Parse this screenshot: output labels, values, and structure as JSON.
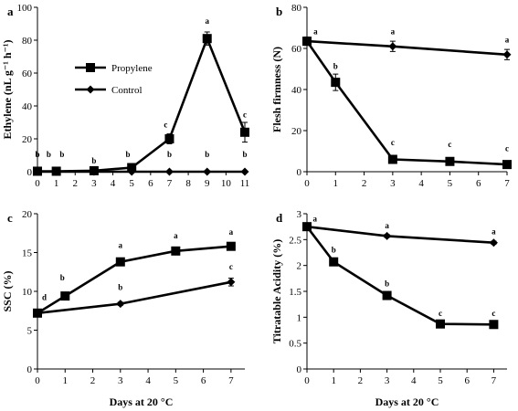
{
  "chart_data": [
    {
      "type": "line",
      "panel_label": "a",
      "ylabel": "Ethylene (nL g⁻¹ h⁻¹)",
      "xlabel": "",
      "xlim": [
        0,
        11
      ],
      "ylim": [
        0,
        100
      ],
      "x_ticks": [
        0,
        1,
        2,
        3,
        4,
        5,
        6,
        7,
        8,
        9,
        10,
        11
      ],
      "y_ticks": [
        0,
        20,
        40,
        60,
        80,
        100
      ],
      "legend": {
        "position": "left",
        "entries": [
          "Propylene",
          "Control"
        ]
      },
      "series": [
        {
          "name": "Propylene",
          "marker": "square",
          "x": [
            0,
            1,
            3,
            5,
            7,
            9,
            11
          ],
          "y": [
            0.3,
            0.3,
            0.6,
            2.5,
            20,
            81,
            24
          ],
          "err": [
            0,
            0,
            0,
            0.8,
            3,
            4,
            6
          ]
        },
        {
          "name": "Control",
          "marker": "diamond",
          "x": [
            0,
            1,
            3,
            5,
            7,
            9,
            11
          ],
          "y": [
            0,
            0,
            0,
            0,
            0,
            0,
            0
          ],
          "err": [
            0,
            0,
            0,
            0,
            0,
            0,
            0
          ]
        }
      ],
      "annotations": [
        {
          "x": 0,
          "y": 9,
          "text": "b"
        },
        {
          "x": 0.6,
          "y": 9,
          "text": "b"
        },
        {
          "x": 1.3,
          "y": 9,
          "text": "b"
        },
        {
          "x": 3,
          "y": 5,
          "text": "b"
        },
        {
          "x": 4.8,
          "y": 9,
          "text": "b"
        },
        {
          "x": 6.8,
          "y": 27,
          "text": "c"
        },
        {
          "x": 9,
          "y": 90,
          "text": "a"
        },
        {
          "x": 11,
          "y": 33,
          "text": "c"
        },
        {
          "x": 7,
          "y": 9,
          "text": "b"
        },
        {
          "x": 9,
          "y": 9,
          "text": "b"
        },
        {
          "x": 11,
          "y": 9,
          "text": "b"
        }
      ]
    },
    {
      "type": "line",
      "panel_label": "b",
      "ylabel": "Flesh firmness (N)",
      "xlabel": "",
      "xlim": [
        0,
        7
      ],
      "ylim": [
        0,
        80
      ],
      "x_ticks": [
        0,
        1,
        2,
        3,
        4,
        5,
        6,
        7
      ],
      "y_ticks": [
        0,
        20,
        40,
        60,
        80
      ],
      "series": [
        {
          "name": "Propylene",
          "marker": "square",
          "x": [
            0,
            1,
            3,
            5,
            7
          ],
          "y": [
            63.5,
            43.5,
            6,
            5,
            3.5
          ],
          "err": [
            2,
            4,
            1,
            1,
            1
          ]
        },
        {
          "name": "Control",
          "marker": "diamond",
          "x": [
            0,
            3,
            7
          ],
          "y": [
            63.5,
            61,
            57
          ],
          "err": [
            2,
            2.5,
            2.5
          ]
        }
      ],
      "annotations": [
        {
          "x": 0.3,
          "y": 67,
          "text": "a"
        },
        {
          "x": 3,
          "y": 67,
          "text": "a"
        },
        {
          "x": 7,
          "y": 63,
          "text": "a"
        },
        {
          "x": 1,
          "y": 50,
          "text": "b"
        },
        {
          "x": 3,
          "y": 13,
          "text": "c"
        },
        {
          "x": 5,
          "y": 12,
          "text": "c"
        },
        {
          "x": 7,
          "y": 10,
          "text": "c"
        }
      ]
    },
    {
      "type": "line",
      "panel_label": "c",
      "ylabel": "SSC (%)",
      "xlabel": "Days at 20 °C",
      "xlim": [
        0,
        7.5
      ],
      "ylim": [
        0,
        20
      ],
      "x_ticks": [
        0,
        1,
        2,
        3,
        4,
        5,
        6,
        7
      ],
      "y_ticks": [
        0,
        5,
        10,
        15,
        20
      ],
      "series": [
        {
          "name": "Propylene",
          "marker": "square",
          "x": [
            0,
            1,
            3,
            5,
            7
          ],
          "y": [
            7.2,
            9.4,
            13.8,
            15.2,
            15.8
          ],
          "err": [
            0.2,
            0.2,
            0.3,
            0.3,
            0.2
          ]
        },
        {
          "name": "Control",
          "marker": "diamond",
          "x": [
            0,
            3,
            7
          ],
          "y": [
            7.2,
            8.4,
            11.2
          ],
          "err": [
            0.2,
            0.2,
            0.5
          ]
        }
      ],
      "annotations": [
        {
          "x": 0.25,
          "y": 8.9,
          "text": "d"
        },
        {
          "x": 0.9,
          "y": 11.4,
          "text": "b"
        },
        {
          "x": 3,
          "y": 10.2,
          "text": "b"
        },
        {
          "x": 3,
          "y": 15.6,
          "text": "a"
        },
        {
          "x": 5,
          "y": 16.8,
          "text": "a"
        },
        {
          "x": 7,
          "y": 17.3,
          "text": "a"
        },
        {
          "x": 7,
          "y": 12.8,
          "text": "c"
        }
      ]
    },
    {
      "type": "line",
      "panel_label": "d",
      "ylabel": "Titratable Acidity (%)",
      "xlabel": "Days at 20 °C",
      "xlim": [
        0,
        7.5
      ],
      "ylim": [
        0,
        3
      ],
      "x_ticks": [
        0,
        1,
        2,
        3,
        4,
        5,
        6,
        7
      ],
      "y_ticks": [
        0,
        0.5,
        1,
        1.5,
        2,
        2.5,
        3
      ],
      "series": [
        {
          "name": "Propylene",
          "marker": "square",
          "x": [
            0,
            1,
            3,
            5,
            7
          ],
          "y": [
            2.75,
            2.07,
            1.42,
            0.87,
            0.86
          ],
          "err": [
            0.04,
            0.04,
            0.04,
            0.03,
            0.03
          ]
        },
        {
          "name": "Control",
          "marker": "diamond",
          "x": [
            0,
            3,
            7
          ],
          "y": [
            2.75,
            2.57,
            2.44
          ],
          "err": [
            0.04,
            0.03,
            0.03
          ]
        }
      ],
      "annotations": [
        {
          "x": 0.3,
          "y": 2.85,
          "text": "a"
        },
        {
          "x": 3,
          "y": 2.72,
          "text": "a"
        },
        {
          "x": 7,
          "y": 2.6,
          "text": "a"
        },
        {
          "x": 1,
          "y": 2.25,
          "text": "b"
        },
        {
          "x": 3,
          "y": 1.6,
          "text": "b"
        },
        {
          "x": 5,
          "y": 1.02,
          "text": "c"
        },
        {
          "x": 7,
          "y": 1.02,
          "text": "c"
        }
      ]
    }
  ]
}
